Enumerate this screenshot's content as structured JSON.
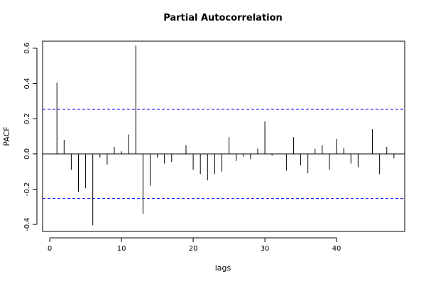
{
  "chart_data": {
    "type": "bar",
    "title": "Partial Autocorrelation",
    "xlabel": "lags",
    "ylabel": "PACF",
    "xlim": [
      -1,
      49.5
    ],
    "ylim": [
      -0.44,
      0.64
    ],
    "x_ticks": [
      0,
      10,
      20,
      30,
      40
    ],
    "y_ticks": [
      -0.4,
      -0.2,
      0.0,
      0.2,
      0.4,
      0.6
    ],
    "x_tick_labels": [
      "0",
      "10",
      "20",
      "30",
      "40"
    ],
    "y_tick_labels": [
      "-0.4",
      "-0.2",
      "0.0",
      "0.2",
      "0.4",
      "0.6"
    ],
    "confidence_bounds": [
      0.253,
      -0.253
    ],
    "bound_color": "#0000ff",
    "bar_color": "#000000",
    "grid": false,
    "lags": [
      1,
      2,
      3,
      4,
      5,
      6,
      7,
      8,
      9,
      10,
      11,
      12,
      13,
      14,
      15,
      16,
      17,
      18,
      19,
      20,
      21,
      22,
      23,
      24,
      25,
      26,
      27,
      28,
      29,
      30,
      31,
      32,
      33,
      34,
      35,
      36,
      37,
      38,
      39,
      40,
      41,
      42,
      43,
      44,
      45,
      46,
      47,
      48
    ],
    "values": [
      0.405,
      0.08,
      -0.09,
      -0.215,
      -0.195,
      -0.405,
      -0.02,
      -0.06,
      0.04,
      0.015,
      0.11,
      0.615,
      -0.34,
      -0.18,
      -0.02,
      -0.055,
      -0.045,
      0.0,
      0.05,
      -0.09,
      -0.115,
      -0.15,
      -0.115,
      -0.1,
      0.095,
      -0.04,
      -0.015,
      -0.03,
      0.03,
      0.185,
      -0.01,
      0.0,
      -0.095,
      0.095,
      -0.065,
      -0.11,
      0.03,
      0.05,
      -0.09,
      0.085,
      0.035,
      -0.055,
      -0.075,
      0.0,
      0.14,
      -0.115,
      0.04,
      -0.025
    ]
  }
}
